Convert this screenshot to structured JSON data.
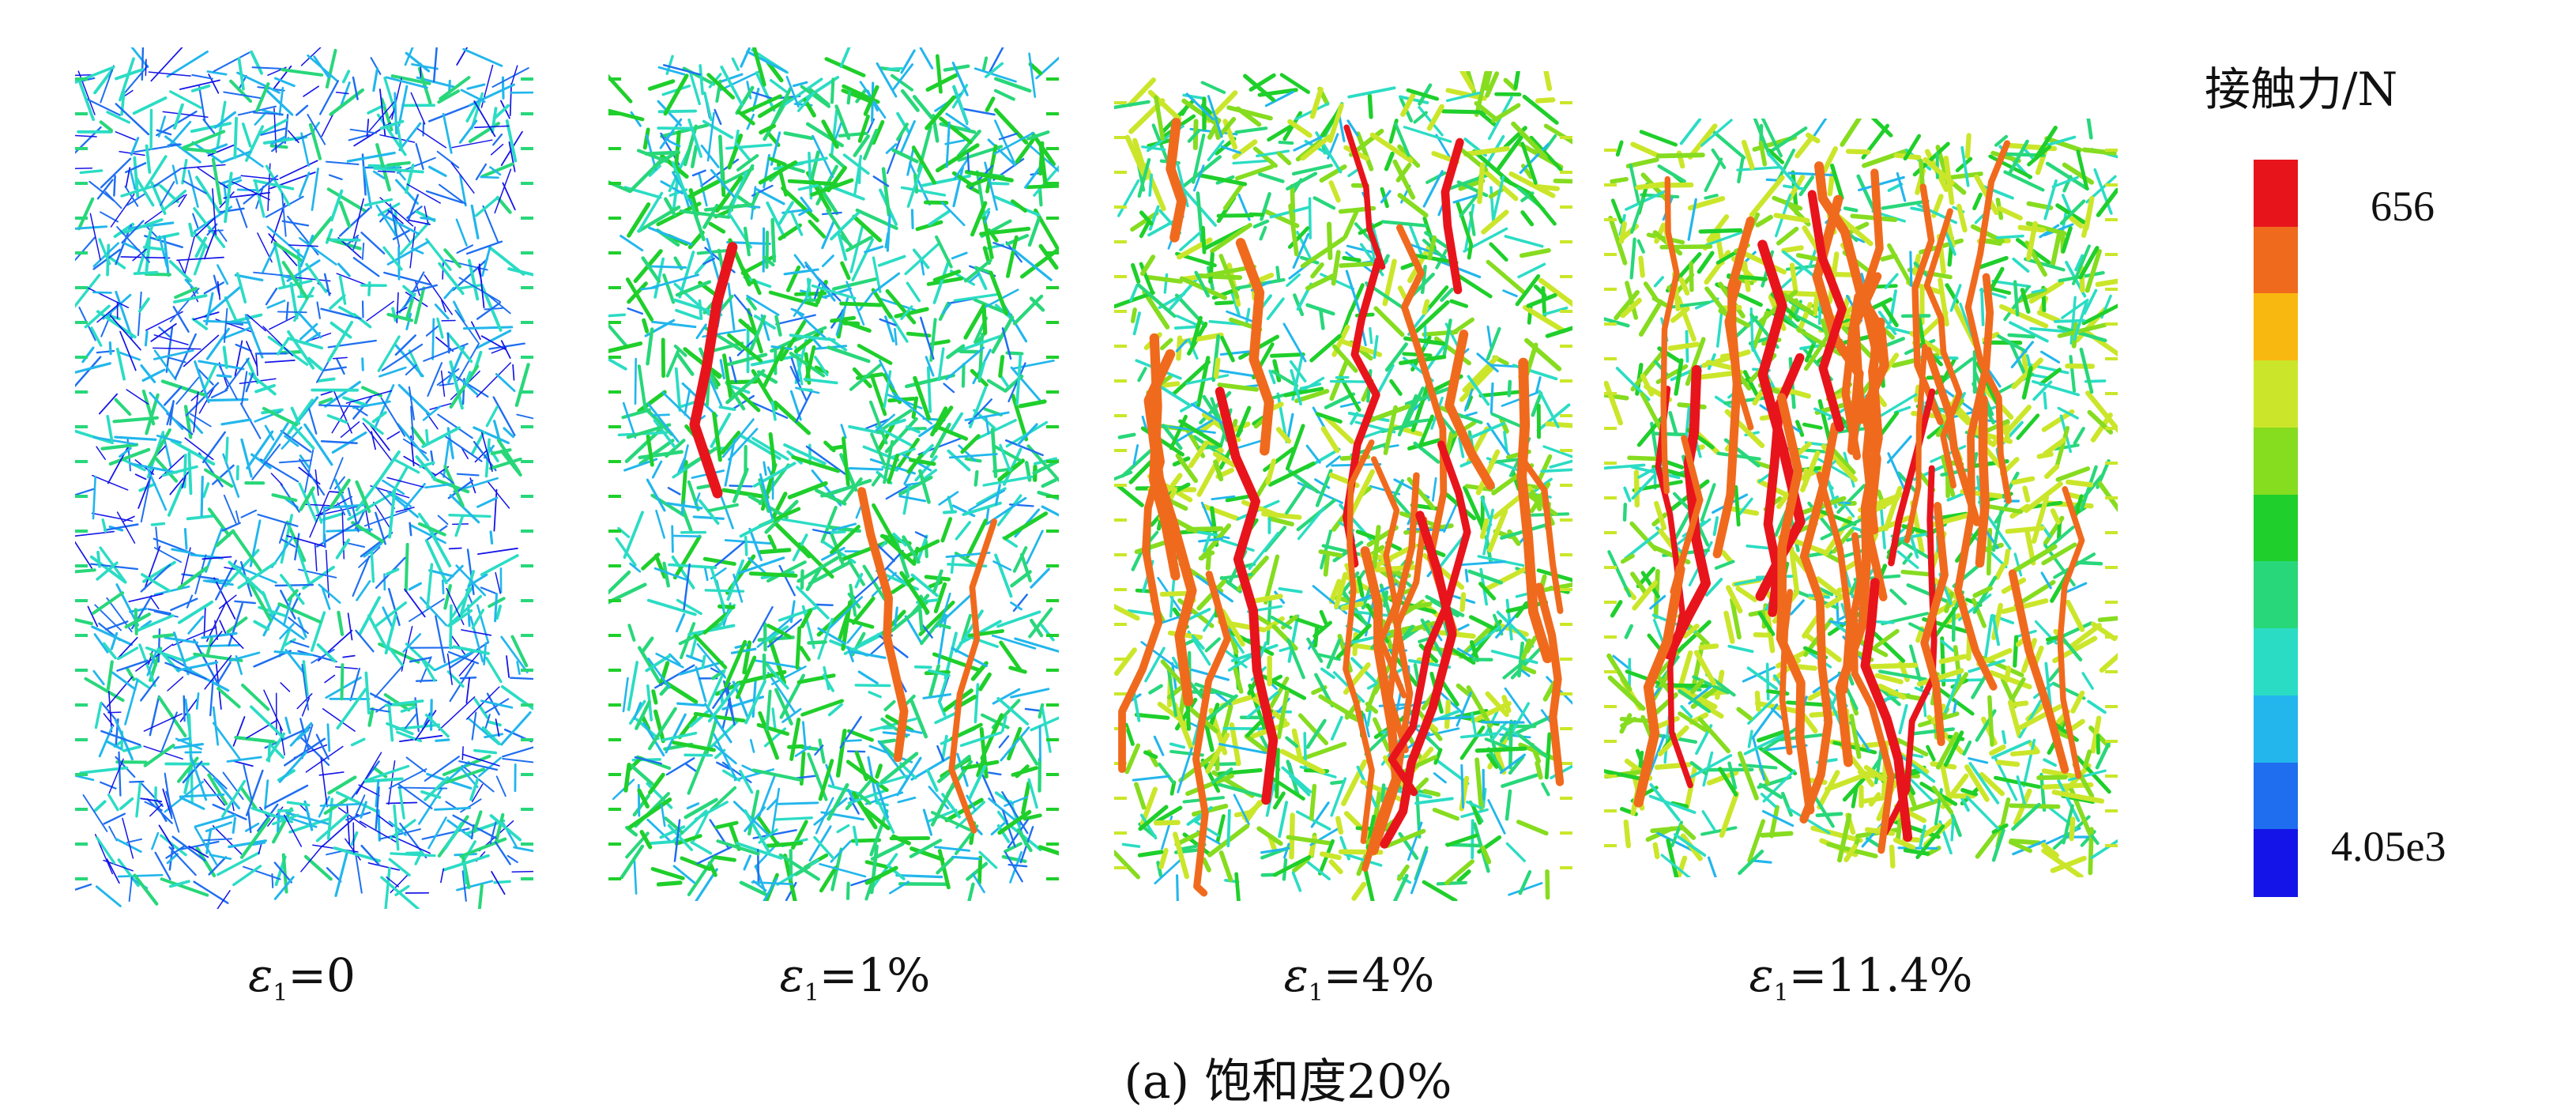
{
  "figure": {
    "caption": "(a) 饱和度20%",
    "panels": [
      {
        "id": "p1",
        "eps_symbol": "ε",
        "eps_sub": "1",
        "strain_value": "=0",
        "strain_fraction": 0.0
      },
      {
        "id": "p2",
        "eps_symbol": "ε",
        "eps_sub": "1",
        "strain_value": "=1%",
        "strain_fraction": 0.01
      },
      {
        "id": "p3",
        "eps_symbol": "ε",
        "eps_sub": "1",
        "strain_value": "=4%",
        "strain_fraction": 0.04
      },
      {
        "id": "p4",
        "eps_symbol": "ε",
        "eps_sub": "1",
        "strain_value": "=11.4%",
        "strain_fraction": 0.114
      }
    ]
  },
  "legend": {
    "title": "接触力/N",
    "max_label": "656",
    "min_label": "4.05e3",
    "colors_top_to_bottom": [
      "#e8141c",
      "#f06a1e",
      "#f9b80f",
      "#cbe62a",
      "#86dc1f",
      "#1fcf2b",
      "#28d77a",
      "#2bdcc4",
      "#22b6ec",
      "#1f6ef0",
      "#1414e8"
    ]
  }
}
